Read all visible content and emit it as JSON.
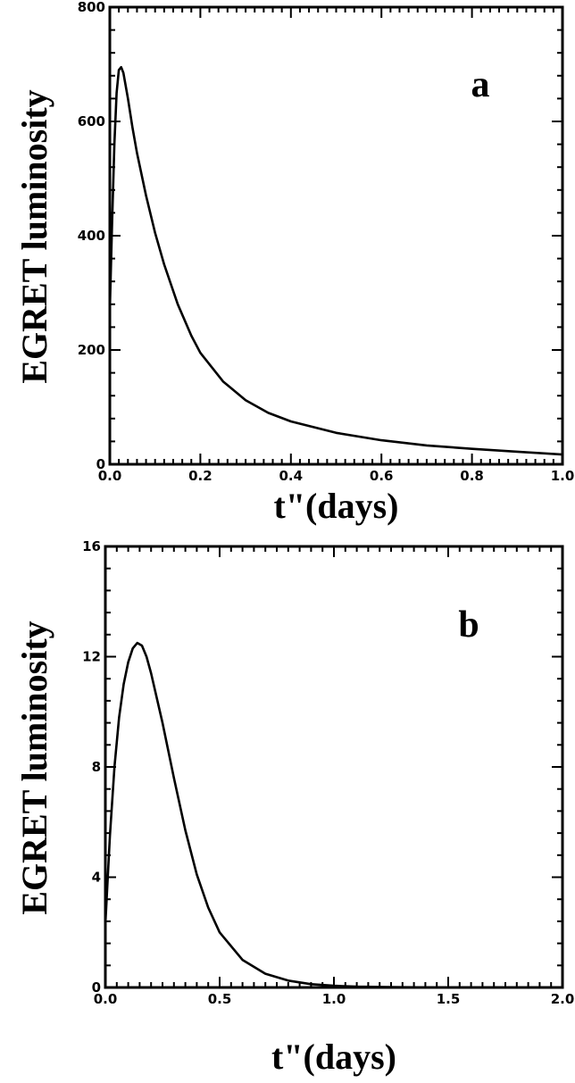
{
  "chart_data": [
    {
      "type": "line",
      "panel_label": "a",
      "ylabel": "EGRET luminosity",
      "xlabel": "t\"(days)",
      "xlim": [
        0.0,
        1.0
      ],
      "ylim": [
        0,
        800
      ],
      "xticks": [
        "0.0",
        "0.2",
        "0.4",
        "0.6",
        "0.8",
        "1.0"
      ],
      "yticks": [
        "0",
        "200",
        "400",
        "600",
        "800"
      ],
      "grid": false,
      "series": [
        {
          "x": [
            0.0,
            0.005,
            0.01,
            0.015,
            0.02,
            0.025,
            0.03,
            0.04,
            0.05,
            0.06,
            0.08,
            0.1,
            0.12,
            0.15,
            0.18,
            0.2,
            0.25,
            0.3,
            0.35,
            0.4,
            0.5,
            0.6,
            0.7,
            0.8,
            0.9,
            1.0
          ],
          "y": [
            270,
            420,
            560,
            650,
            690,
            695,
            685,
            640,
            590,
            545,
            470,
            405,
            350,
            280,
            225,
            195,
            145,
            112,
            90,
            75,
            55,
            42,
            33,
            27,
            22,
            17
          ]
        }
      ]
    },
    {
      "type": "line",
      "panel_label": "b",
      "ylabel": "EGRET luminosity",
      "xlabel": "t\"(days)",
      "xlim": [
        0.0,
        2.0
      ],
      "ylim": [
        0,
        16
      ],
      "xticks": [
        "0.0",
        "0.5",
        "1.0",
        "1.5",
        "2.0"
      ],
      "yticks": [
        "0",
        "4",
        "8",
        "12",
        "16"
      ],
      "grid": false,
      "series": [
        {
          "x": [
            0.0,
            0.02,
            0.04,
            0.06,
            0.08,
            0.1,
            0.12,
            0.14,
            0.16,
            0.18,
            0.2,
            0.25,
            0.3,
            0.35,
            0.4,
            0.45,
            0.5,
            0.6,
            0.7,
            0.8,
            0.9,
            1.0,
            1.1,
            1.2,
            1.3,
            1.5,
            1.75,
            2.0
          ],
          "y": [
            2.3,
            5.5,
            8.0,
            9.8,
            11.0,
            11.8,
            12.3,
            12.5,
            12.4,
            12.0,
            11.4,
            9.6,
            7.6,
            5.7,
            4.1,
            2.9,
            2.0,
            1.0,
            0.5,
            0.25,
            0.12,
            0.06,
            0.03,
            0.02,
            0.01,
            0.0,
            0.0,
            0.0
          ]
        }
      ]
    }
  ]
}
